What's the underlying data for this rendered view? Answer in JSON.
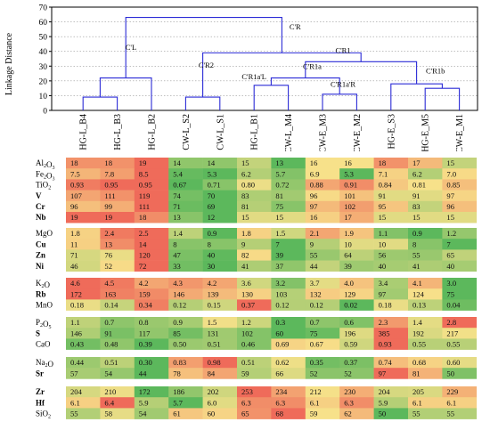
{
  "dendrogram": {
    "ylabel": "Linkage Distance",
    "ylim": [
      0,
      70
    ],
    "y_ticks": [
      0,
      10,
      20,
      30,
      40,
      50,
      60,
      70
    ],
    "leaves": [
      "HG-L_B4",
      "HG-L_B3",
      "HG-L_B2",
      "CW-L_S2",
      "CW-L_S1",
      "HG-L_B1",
      "CW-L_M4",
      "CW-E_M3",
      "CW-E_M2",
      "HG-E_S3",
      "HG-E_M5",
      "CW-E_M1"
    ],
    "merges": [
      {
        "a": 0,
        "b": 1,
        "height": 9
      },
      {
        "a": 3,
        "b": 4,
        "height": 9
      },
      {
        "a": 7,
        "b": 8,
        "height": 11
      },
      {
        "a": 10,
        "b": 11,
        "height": 15
      },
      {
        "a": 5,
        "b": 6,
        "height": 17
      },
      {
        "a": 9,
        "b": "n3",
        "height": 18,
        "label": "C'R1b"
      },
      {
        "a": "n0",
        "b": 2,
        "height": 22
      },
      {
        "a": "n4",
        "b": "n2",
        "height": 22,
        "label": "C'R1a"
      },
      {
        "a": "n7",
        "b": "n5",
        "height": 33,
        "label": "C'R1"
      },
      {
        "a": "n1",
        "b": "n8",
        "height": 39,
        "label": "C'R2"
      },
      {
        "a": "n6",
        "b": "n9",
        "height": 63,
        "label": "C'R"
      }
    ],
    "labels": [
      {
        "text": "C'L",
        "leaf_pos": 1.4,
        "y": 41
      },
      {
        "text": "C'R",
        "leaf_pos": 6.2,
        "y": 55
      },
      {
        "text": "C'R1",
        "leaf_pos": 7.6,
        "y": 39
      },
      {
        "text": "C'R2",
        "leaf_pos": 3.6,
        "y": 29
      },
      {
        "text": "C'R1a",
        "leaf_pos": 6.7,
        "y": 28
      },
      {
        "text": "C'R1a'L",
        "leaf_pos": 5.0,
        "y": 21
      },
      {
        "text": "C'R1a'R",
        "leaf_pos": 7.6,
        "y": 16
      },
      {
        "text": "C'R1b",
        "leaf_pos": 10.3,
        "y": 25
      }
    ],
    "line_color": "#2b2bd6"
  },
  "heatmap": {
    "colors": {
      "low": "#5cb85c",
      "mid": "#f7e18a",
      "high": "#ef6b5a"
    },
    "groups": [
      {
        "rows": [
          {
            "el": "Al",
            "sub": "2",
            "el2": "O",
            "sub2": "3",
            "bold": false,
            "values": [
              "18",
              "18",
              "19",
              "14",
              "14",
              "15",
              "13",
              "16",
              "16",
              "18",
              "17",
              "15"
            ]
          },
          {
            "el": "Fe",
            "sub": "2",
            "el2": "O",
            "sub2": "3",
            "bold": false,
            "values": [
              "7.5",
              "7.8",
              "8.5",
              "5.4",
              "5.3",
              "6.2",
              "5.7",
              "6.9",
              "5.3",
              "7.1",
              "6.2",
              "7.0"
            ]
          },
          {
            "el": "TiO",
            "sub": "2",
            "el2": "",
            "sub2": "",
            "bold": false,
            "values": [
              "0.93",
              "0.95",
              "0.95",
              "0.67",
              "0.71",
              "0.80",
              "0.72",
              "0.88",
              "0.91",
              "0.84",
              "0.81",
              "0.85"
            ]
          },
          {
            "el": "V",
            "sub": "",
            "el2": "",
            "sub2": "",
            "bold": true,
            "values": [
              "107",
              "111",
              "119",
              "74",
              "70",
              "83",
              "81",
              "96",
              "101",
              "91",
              "91",
              "97"
            ]
          },
          {
            "el": "Cr",
            "sub": "",
            "el2": "",
            "sub2": "",
            "bold": true,
            "values": [
              "96",
              "99",
              "111",
              "71",
              "69",
              "81",
              "75",
              "97",
              "102",
              "95",
              "83",
              "96"
            ]
          },
          {
            "el": "Nb",
            "sub": "",
            "el2": "",
            "sub2": "",
            "bold": true,
            "values": [
              "19",
              "19",
              "18",
              "13",
              "12",
              "15",
              "15",
              "16",
              "17",
              "15",
              "15",
              "15"
            ]
          }
        ]
      },
      {
        "rows": [
          {
            "el": "MgO",
            "sub": "",
            "el2": "",
            "sub2": "",
            "bold": false,
            "values": [
              "1.8",
              "2.4",
              "2.5",
              "1.4",
              "0.9",
              "1.8",
              "1.5",
              "2.1",
              "1.9",
              "1.1",
              "0.9",
              "1.2"
            ]
          },
          {
            "el": "Cu",
            "sub": "",
            "el2": "",
            "sub2": "",
            "bold": true,
            "values": [
              "11",
              "13",
              "14",
              "8",
              "8",
              "9",
              "7",
              "9",
              "10",
              "10",
              "8",
              "7"
            ]
          },
          {
            "el": "Zn",
            "sub": "",
            "el2": "",
            "sub2": "",
            "bold": true,
            "values": [
              "71",
              "76",
              "120",
              "47",
              "40",
              "82",
              "39",
              "55",
              "64",
              "56",
              "55",
              "65"
            ]
          },
          {
            "el": "Ni",
            "sub": "",
            "el2": "",
            "sub2": "",
            "bold": true,
            "values": [
              "46",
              "52",
              "72",
              "33",
              "30",
              "41",
              "37",
              "44",
              "39",
              "40",
              "41",
              "40"
            ]
          }
        ]
      },
      {
        "rows": [
          {
            "el": "K",
            "sub": "2",
            "el2": "O",
            "sub2": "",
            "bold": false,
            "values": [
              "4.6",
              "4.5",
              "4.2",
              "4.3",
              "4.2",
              "3.6",
              "3.2",
              "3.7",
              "4.0",
              "3.4",
              "4.1",
              "3.0"
            ]
          },
          {
            "el": "Rb",
            "sub": "",
            "el2": "",
            "sub2": "",
            "bold": true,
            "values": [
              "172",
              "163",
              "159",
              "146",
              "139",
              "130",
              "103",
              "132",
              "129",
              "97",
              "124",
              "75"
            ]
          },
          {
            "el": "MnO",
            "sub": "",
            "el2": "",
            "sub2": "",
            "bold": false,
            "values": [
              "0.18",
              "0.14",
              "0.34",
              "0.12",
              "0.15",
              "0.37",
              "0.12",
              "0.12",
              "0.02",
              "0.18",
              "0.13",
              "0.04"
            ]
          }
        ]
      },
      {
        "rows": [
          {
            "el": "P",
            "sub": "2",
            "el2": "O",
            "sub2": "5",
            "bold": false,
            "values": [
              "1.1",
              "0.7",
              "0.8",
              "0.9",
              "1.5",
              "1.2",
              "0.3",
              "0.7",
              "0.6",
              "2.3",
              "1.4",
              "2.8"
            ]
          },
          {
            "el": "S",
            "sub": "",
            "el2": "",
            "sub2": "",
            "bold": true,
            "values": [
              "146",
              "91",
              "117",
              "85",
              "131",
              "102",
              "60",
              "75",
              "196",
              "385",
              "192",
              "217"
            ]
          },
          {
            "el": "CaO",
            "sub": "",
            "el2": "",
            "sub2": "",
            "bold": false,
            "values": [
              "0.43",
              "0.48",
              "0.39",
              "0.50",
              "0.51",
              "0.46",
              "0.69",
              "0.67",
              "0.59",
              "0.93",
              "0.55",
              "0.55"
            ]
          }
        ]
      },
      {
        "rows": [
          {
            "el": "Na",
            "sub": "2",
            "el2": "O",
            "sub2": "",
            "bold": false,
            "values": [
              "0.44",
              "0.51",
              "0.30",
              "0.83",
              "0.98",
              "0.51",
              "0.62",
              "0.35",
              "0.37",
              "0.74",
              "0.68",
              "0.60"
            ]
          },
          {
            "el": "Sr",
            "sub": "",
            "el2": "",
            "sub2": "",
            "bold": true,
            "values": [
              "57",
              "54",
              "44",
              "78",
              "84",
              "59",
              "66",
              "52",
              "52",
              "97",
              "81",
              "50"
            ]
          }
        ]
      },
      {
        "rows": [
          {
            "el": "Zr",
            "sub": "",
            "el2": "",
            "sub2": "",
            "bold": true,
            "values": [
              "204",
              "210",
              "172",
              "186",
              "202",
              "253",
              "234",
              "212",
              "230",
              "204",
              "205",
              "229"
            ]
          },
          {
            "el": "Hf",
            "sub": "",
            "el2": "",
            "sub2": "",
            "bold": true,
            "values": [
              "6.1",
              "6.4",
              "5.9",
              "5.7",
              "6.0",
              "6.3",
              "6.3",
              "6.1",
              "6.3",
              "5.9",
              "6.1",
              "6.1"
            ]
          },
          {
            "el": "SiO",
            "sub": "2",
            "el2": "",
            "sub2": "",
            "bold": false,
            "values": [
              "55",
              "58",
              "54",
              "61",
              "60",
              "65",
              "68",
              "59",
              "62",
              "50",
              "55",
              "55"
            ]
          }
        ]
      }
    ]
  }
}
